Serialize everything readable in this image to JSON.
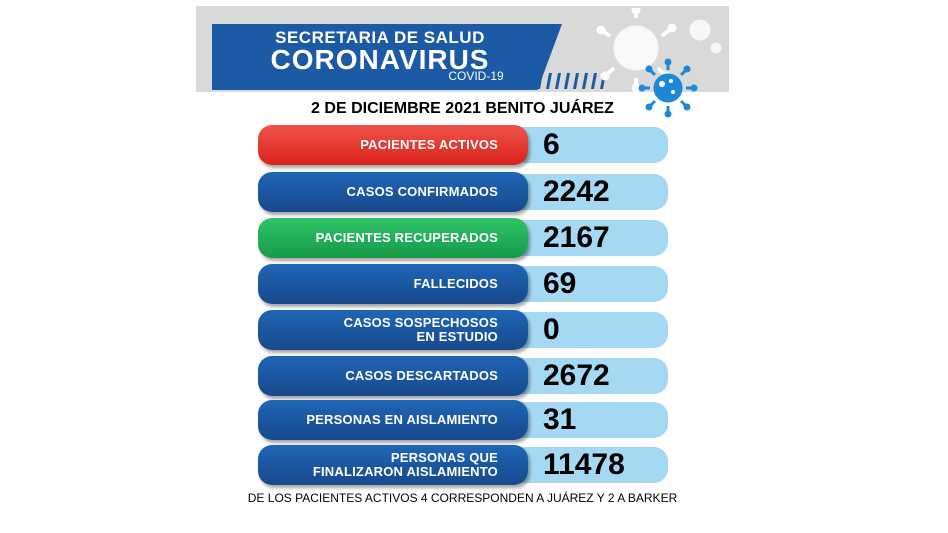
{
  "header": {
    "line1": "SECRETARIA DE SALUD",
    "line2": "CORONAVIRUS",
    "line3": "COVID-19"
  },
  "date_line": "2 DE DICIEMBRE  2021 BENITO JUÁREZ",
  "rows": [
    {
      "label": "PACIENTES ACTIVOS",
      "value": "6",
      "color": "#e03a32"
    },
    {
      "label": "CASOS CONFIRMADOS",
      "value": "2242",
      "color": "#1c5aa6"
    },
    {
      "label": "PACIENTES RECUPERADOS",
      "value": "2167",
      "color": "#22b35a"
    },
    {
      "label": "FALLECIDOS",
      "value": "69",
      "color": "#1c5aa6"
    },
    {
      "label": "CASOS SOSPECHOSOS\nEN ESTUDIO",
      "value": "0",
      "color": "#1c5aa6"
    },
    {
      "label": "CASOS DESCARTADOS",
      "value": "2672",
      "color": "#1c5aa6"
    },
    {
      "label": "PERSONAS EN AISLAMIENTO",
      "value": "31",
      "color": "#1c5aa6"
    },
    {
      "label": "PERSONAS QUE\nFINALIZARON AISLAMIENTO",
      "value": "11478",
      "color": "#1c5aa6"
    }
  ],
  "footer": "DE LOS PACIENTES ACTIVOS  4  CORRESPONDEN A JUÁREZ Y 2 A BARKER",
  "icons": [
    "virus-icon"
  ]
}
